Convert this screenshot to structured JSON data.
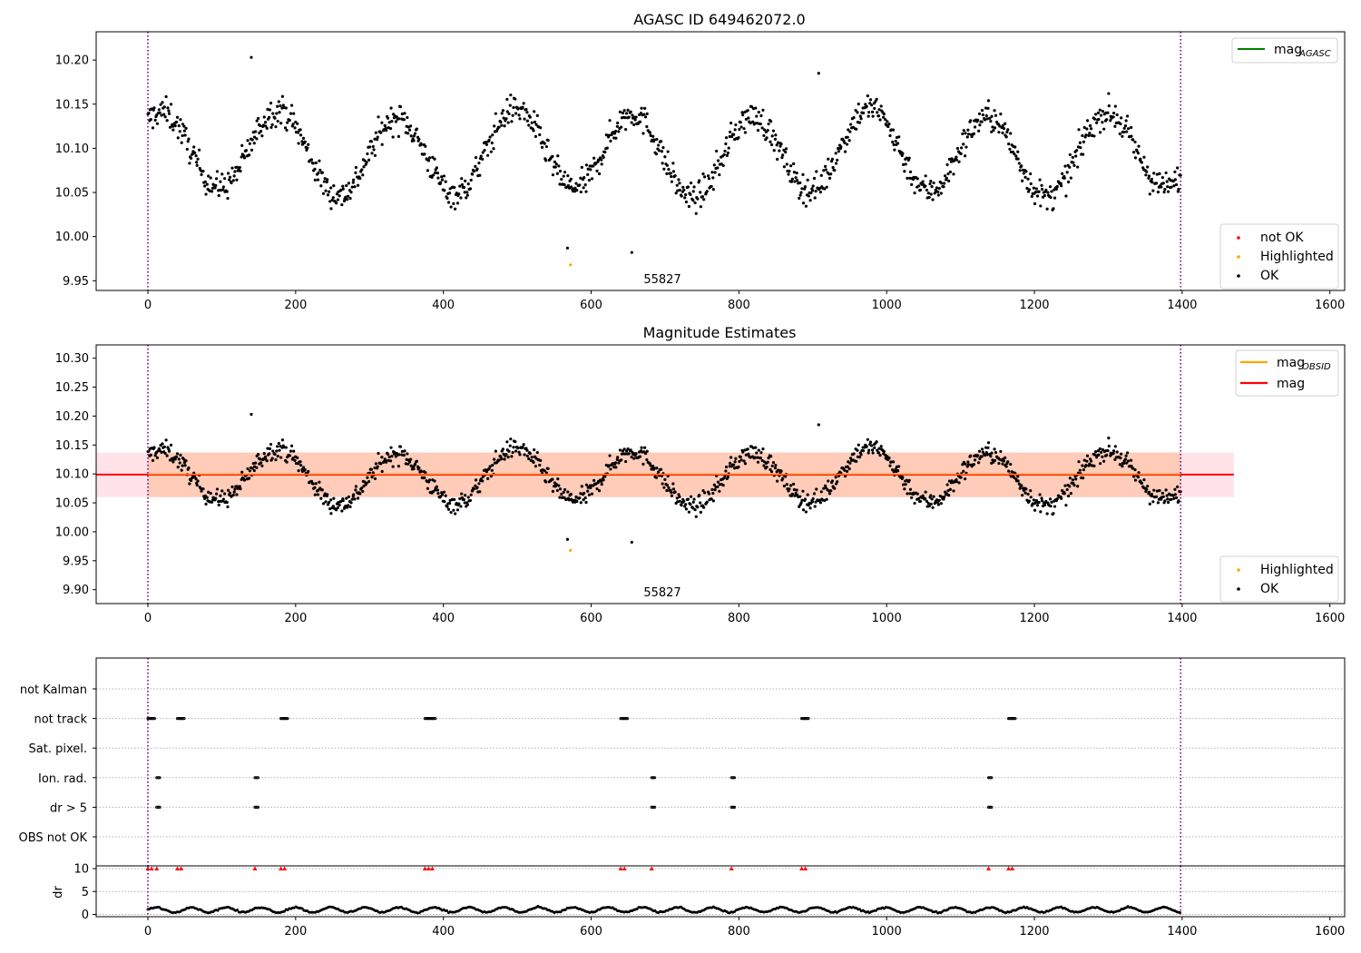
{
  "figure": {
    "title_top": "AGASC ID 649462072.0",
    "title_mid": "Magnitude Estimates",
    "obsid_label": "55827",
    "obsid_x": 700,
    "vlines": [
      0,
      1398
    ]
  },
  "legend_top_right": {
    "label": "mag",
    "sub": "AGASC",
    "color": "#008000"
  },
  "legend_top_points": [
    {
      "label": "not OK",
      "color": "#ff0000"
    },
    {
      "label": "Highlighted",
      "color": "#ffa500"
    },
    {
      "label": "OK",
      "color": "#000000"
    }
  ],
  "legend_mid_lines": [
    {
      "label": "mag",
      "sub": "OBSID",
      "color": "#ffa500"
    },
    {
      "label": "mag",
      "sub": "",
      "color": "#ff0000"
    }
  ],
  "legend_mid_points": [
    {
      "label": "Highlighted",
      "color": "#ffa500"
    },
    {
      "label": "OK",
      "color": "#000000"
    }
  ],
  "chart_data": [
    {
      "type": "scatter",
      "title": "AGASC ID 649462072.0",
      "xlim": [
        -70,
        1620
      ],
      "ylim": [
        9.939,
        10.232
      ],
      "xticks": [
        0,
        200,
        400,
        600,
        800,
        1000,
        1200,
        1400,
        1600
      ],
      "yticks": [
        9.95,
        10.0,
        10.05,
        10.1,
        10.15,
        10.2
      ],
      "series": [
        {
          "name": "OK",
          "description": "~1300 points, quasi-periodic ~160-step oscillation between ~10.02 and ~10.18, x from 0 to 1398",
          "x_range": [
            0,
            1398
          ],
          "y_center": 10.095,
          "y_amplitude": 0.045,
          "period": 160
        },
        {
          "name": "Highlighted",
          "points": [
            [
              572,
              9.968
            ]
          ]
        }
      ],
      "outliers": [
        [
          568,
          9.987
        ],
        [
          655,
          9.982
        ],
        [
          140,
          10.203
        ],
        [
          908,
          10.185
        ]
      ],
      "mag_agasc": 10.1
    },
    {
      "type": "scatter",
      "title": "Magnitude Estimates",
      "xlim": [
        -70,
        1620
      ],
      "ylim": [
        9.876,
        10.323
      ],
      "xticks": [
        0,
        200,
        400,
        600,
        800,
        1000,
        1200,
        1400,
        1600
      ],
      "yticks": [
        9.9,
        9.95,
        10.0,
        10.05,
        10.1,
        10.15,
        10.2,
        10.25,
        10.3
      ],
      "mag": 10.099,
      "mag_band": [
        10.06,
        10.137
      ],
      "mag_obsid": 10.099,
      "mag_obsid_band": [
        10.06,
        10.137
      ],
      "highlighted": [
        [
          572,
          9.968
        ]
      ]
    },
    {
      "type": "scatter",
      "title": "",
      "flag_rows": [
        "not Kalman",
        "not track",
        "Sat. pixel.",
        "Ion. rad.",
        "dr > 5",
        "OBS not OK"
      ],
      "flags": {
        "not track": [
          0,
          5,
          40,
          45,
          180,
          185,
          375,
          380,
          385,
          640,
          645,
          885,
          890,
          1165,
          1170
        ],
        "Ion. rad.": [
          12,
          145,
          682,
          790,
          1138
        ],
        "dr > 5": [
          12,
          145,
          682,
          790,
          1138
        ]
      },
      "dr_ylabel": "dr",
      "dr_yticks": [
        0,
        5,
        10
      ],
      "dr_ylim": [
        -0.5,
        10.6
      ],
      "dr_clip_points": [
        0,
        5,
        12,
        40,
        45,
        145,
        180,
        185,
        375,
        380,
        385,
        640,
        645,
        682,
        790,
        885,
        890,
        1138,
        1165,
        1170
      ],
      "dr_baseline": 1.0,
      "xticks": [
        0,
        200,
        400,
        600,
        800,
        1000,
        1200,
        1400,
        1600
      ]
    }
  ]
}
